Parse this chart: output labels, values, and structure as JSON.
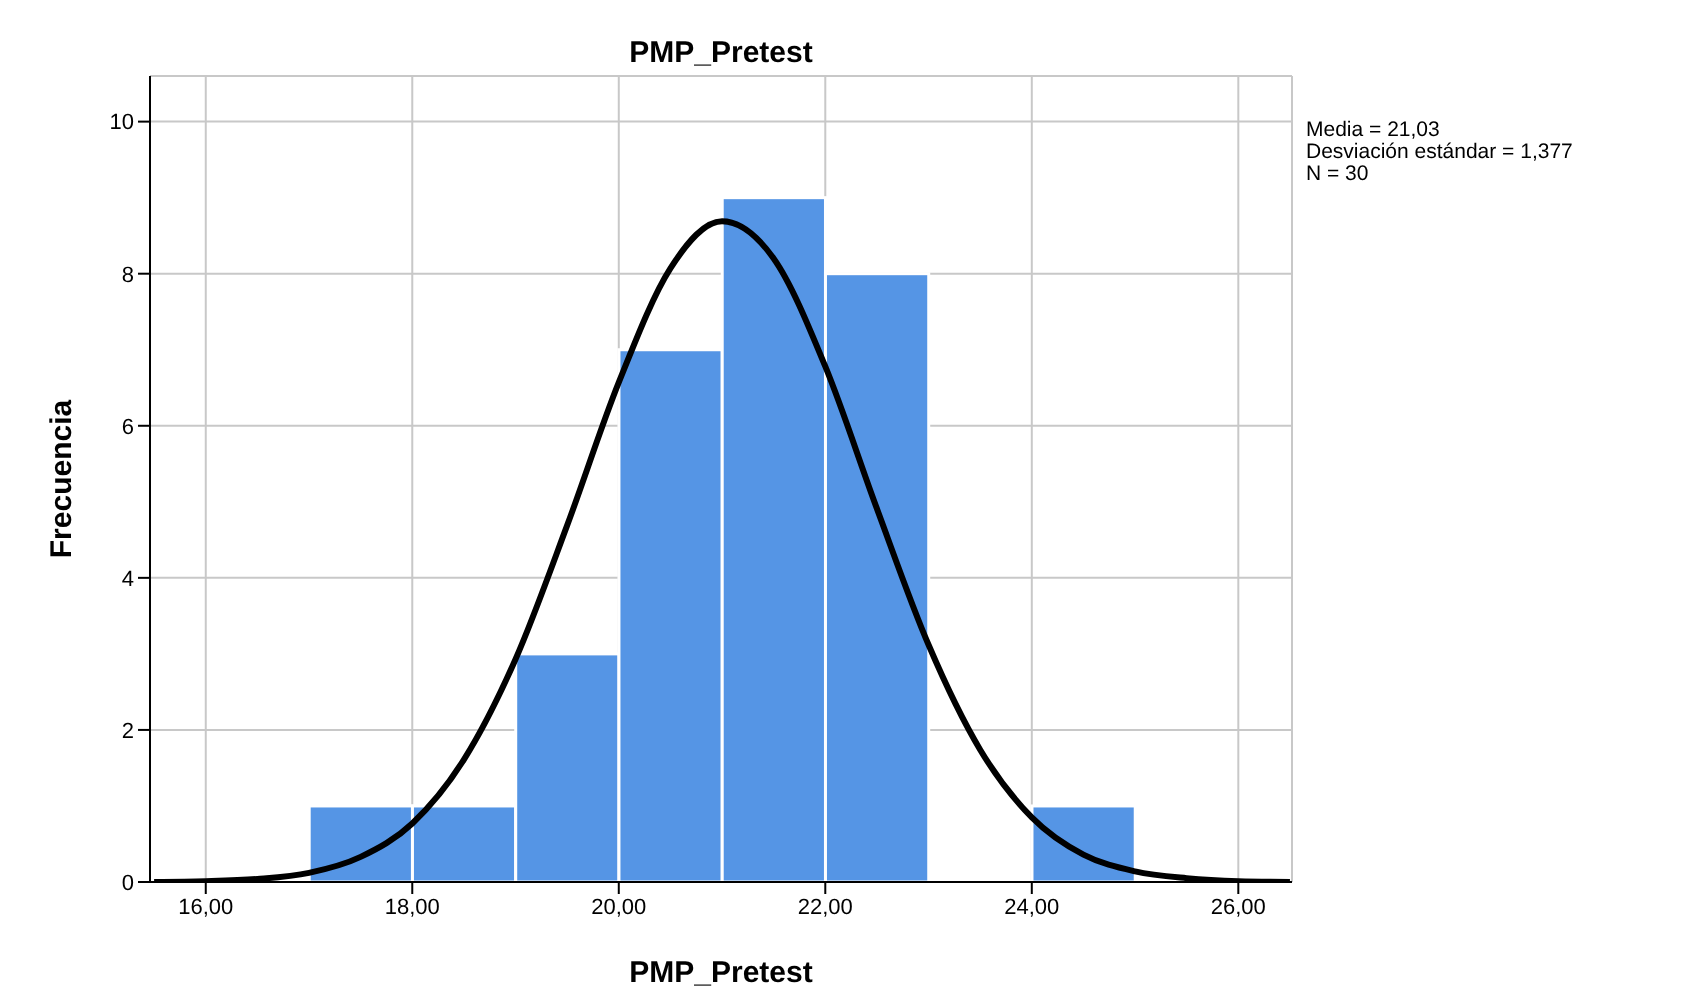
{
  "chart_data": {
    "type": "histogram",
    "title": "PMP_Pretest",
    "xlabel": "PMP_Pretest",
    "ylabel": "Frecuencia",
    "bins": [
      17,
      18,
      19,
      20,
      21,
      22,
      23,
      24,
      25
    ],
    "values": [
      1,
      1,
      3,
      7,
      9,
      8,
      0,
      1
    ],
    "color": "#5595e5",
    "series": [
      {
        "type": "line",
        "color": "#000000",
        "x": [
          15.5,
          16,
          16.5,
          17,
          17.5,
          18,
          18.5,
          19,
          19.5,
          20,
          20.5,
          21,
          21.5,
          22,
          22.5,
          23,
          23.5,
          24,
          24.5,
          25,
          25.5,
          26,
          26.5
        ],
        "values": [
          0,
          0.01,
          0.04,
          0.12,
          0.33,
          0.77,
          1.61,
          2.93,
          4.69,
          6.57,
          8.07,
          8.69,
          8.2,
          6.78,
          4.91,
          3.12,
          1.74,
          0.85,
          0.36,
          0.14,
          0.05,
          0.01,
          0
        ]
      }
    ],
    "marker": "none",
    "line_style": "solid",
    "xlim": [
      15.46,
      26.52
    ],
    "xticks": [
      {
        "value": 16,
        "label": "16,00"
      },
      {
        "value": 18,
        "label": "18,00"
      },
      {
        "value": 20,
        "label": "20,00"
      },
      {
        "value": 22,
        "label": "22,00"
      },
      {
        "value": 24,
        "label": "24,00"
      },
      {
        "value": 26,
        "label": "26,00"
      }
    ],
    "ylim": [
      0,
      10.6
    ],
    "yticks": [
      0,
      2,
      4,
      6,
      8,
      10
    ],
    "grid": true,
    "annotations": [
      "Media = 21,03",
      "Desviación estándar = 1,377",
      "N = 30"
    ]
  }
}
